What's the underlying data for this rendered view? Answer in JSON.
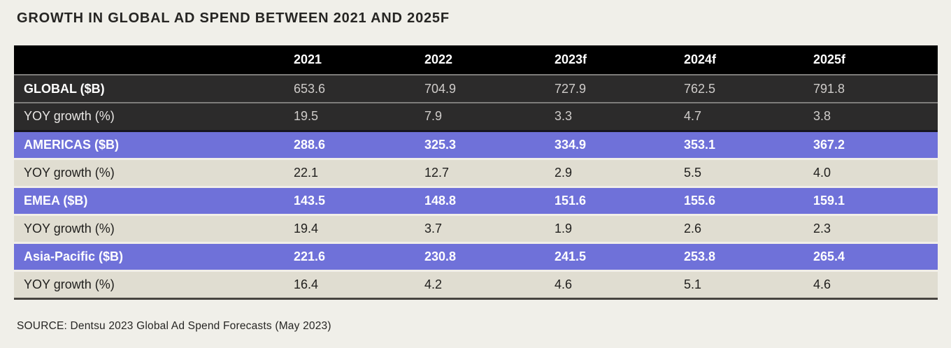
{
  "page": {
    "title": "GROWTH IN GLOBAL AD SPEND BETWEEN 2021 AND 2025F",
    "source_note": "SOURCE: Dentsu 2023 Global Ad Spend Forecasts (May 2023)"
  },
  "colors": {
    "page_background": "#f0efe9",
    "header_row": "#000000",
    "dark_row": "#2c2b2b",
    "purple_row": "#6f71d9",
    "beige_row": "#e0ddd1",
    "light_text": "#ffffff",
    "dark_text": "#21201e"
  },
  "chart_data": {
    "type": "table",
    "title": "GROWTH IN GLOBAL AD SPEND BETWEEN 2021 AND 2025F",
    "source": "SOURCE: Dentsu 2023 Global Ad Spend Forecasts (May 2023)",
    "columns": [
      "",
      "2021",
      "2022",
      "2023f",
      "2024f",
      "2025f"
    ],
    "rows": [
      {
        "label": "GLOBAL ($B)",
        "variant": "dark",
        "bold_label": true,
        "values": [
          "653.6",
          "704.9",
          "727.9",
          "762.5",
          "791.8"
        ]
      },
      {
        "label": "YOY growth (%)",
        "variant": "dark",
        "bold_label": false,
        "values": [
          "19.5",
          "7.9",
          "3.3",
          "4.7",
          "3.8"
        ]
      },
      {
        "label": "AMERICAS ($B)",
        "variant": "purple",
        "bold_label": true,
        "values": [
          "288.6",
          "325.3",
          "334.9",
          "353.1",
          "367.2"
        ]
      },
      {
        "label": "YOY growth (%)",
        "variant": "beige",
        "bold_label": false,
        "values": [
          "22.1",
          "12.7",
          "2.9",
          "5.5",
          "4.0"
        ]
      },
      {
        "label": "EMEA ($B)",
        "variant": "purple",
        "bold_label": true,
        "values": [
          "143.5",
          "148.8",
          "151.6",
          "155.6",
          "159.1"
        ]
      },
      {
        "label": "YOY growth (%)",
        "variant": "beige",
        "bold_label": false,
        "values": [
          "19.4",
          "3.7",
          "1.9",
          "2.6",
          "2.3"
        ]
      },
      {
        "label": "Asia-Pacific ($B)",
        "variant": "purple",
        "bold_label": true,
        "values": [
          "221.6",
          "230.8",
          "241.5",
          "253.8",
          "265.4"
        ]
      },
      {
        "label": "YOY growth (%)",
        "variant": "beige",
        "bold_label": false,
        "values": [
          "16.4",
          "4.2",
          "4.6",
          "5.1",
          "4.6"
        ]
      }
    ]
  }
}
